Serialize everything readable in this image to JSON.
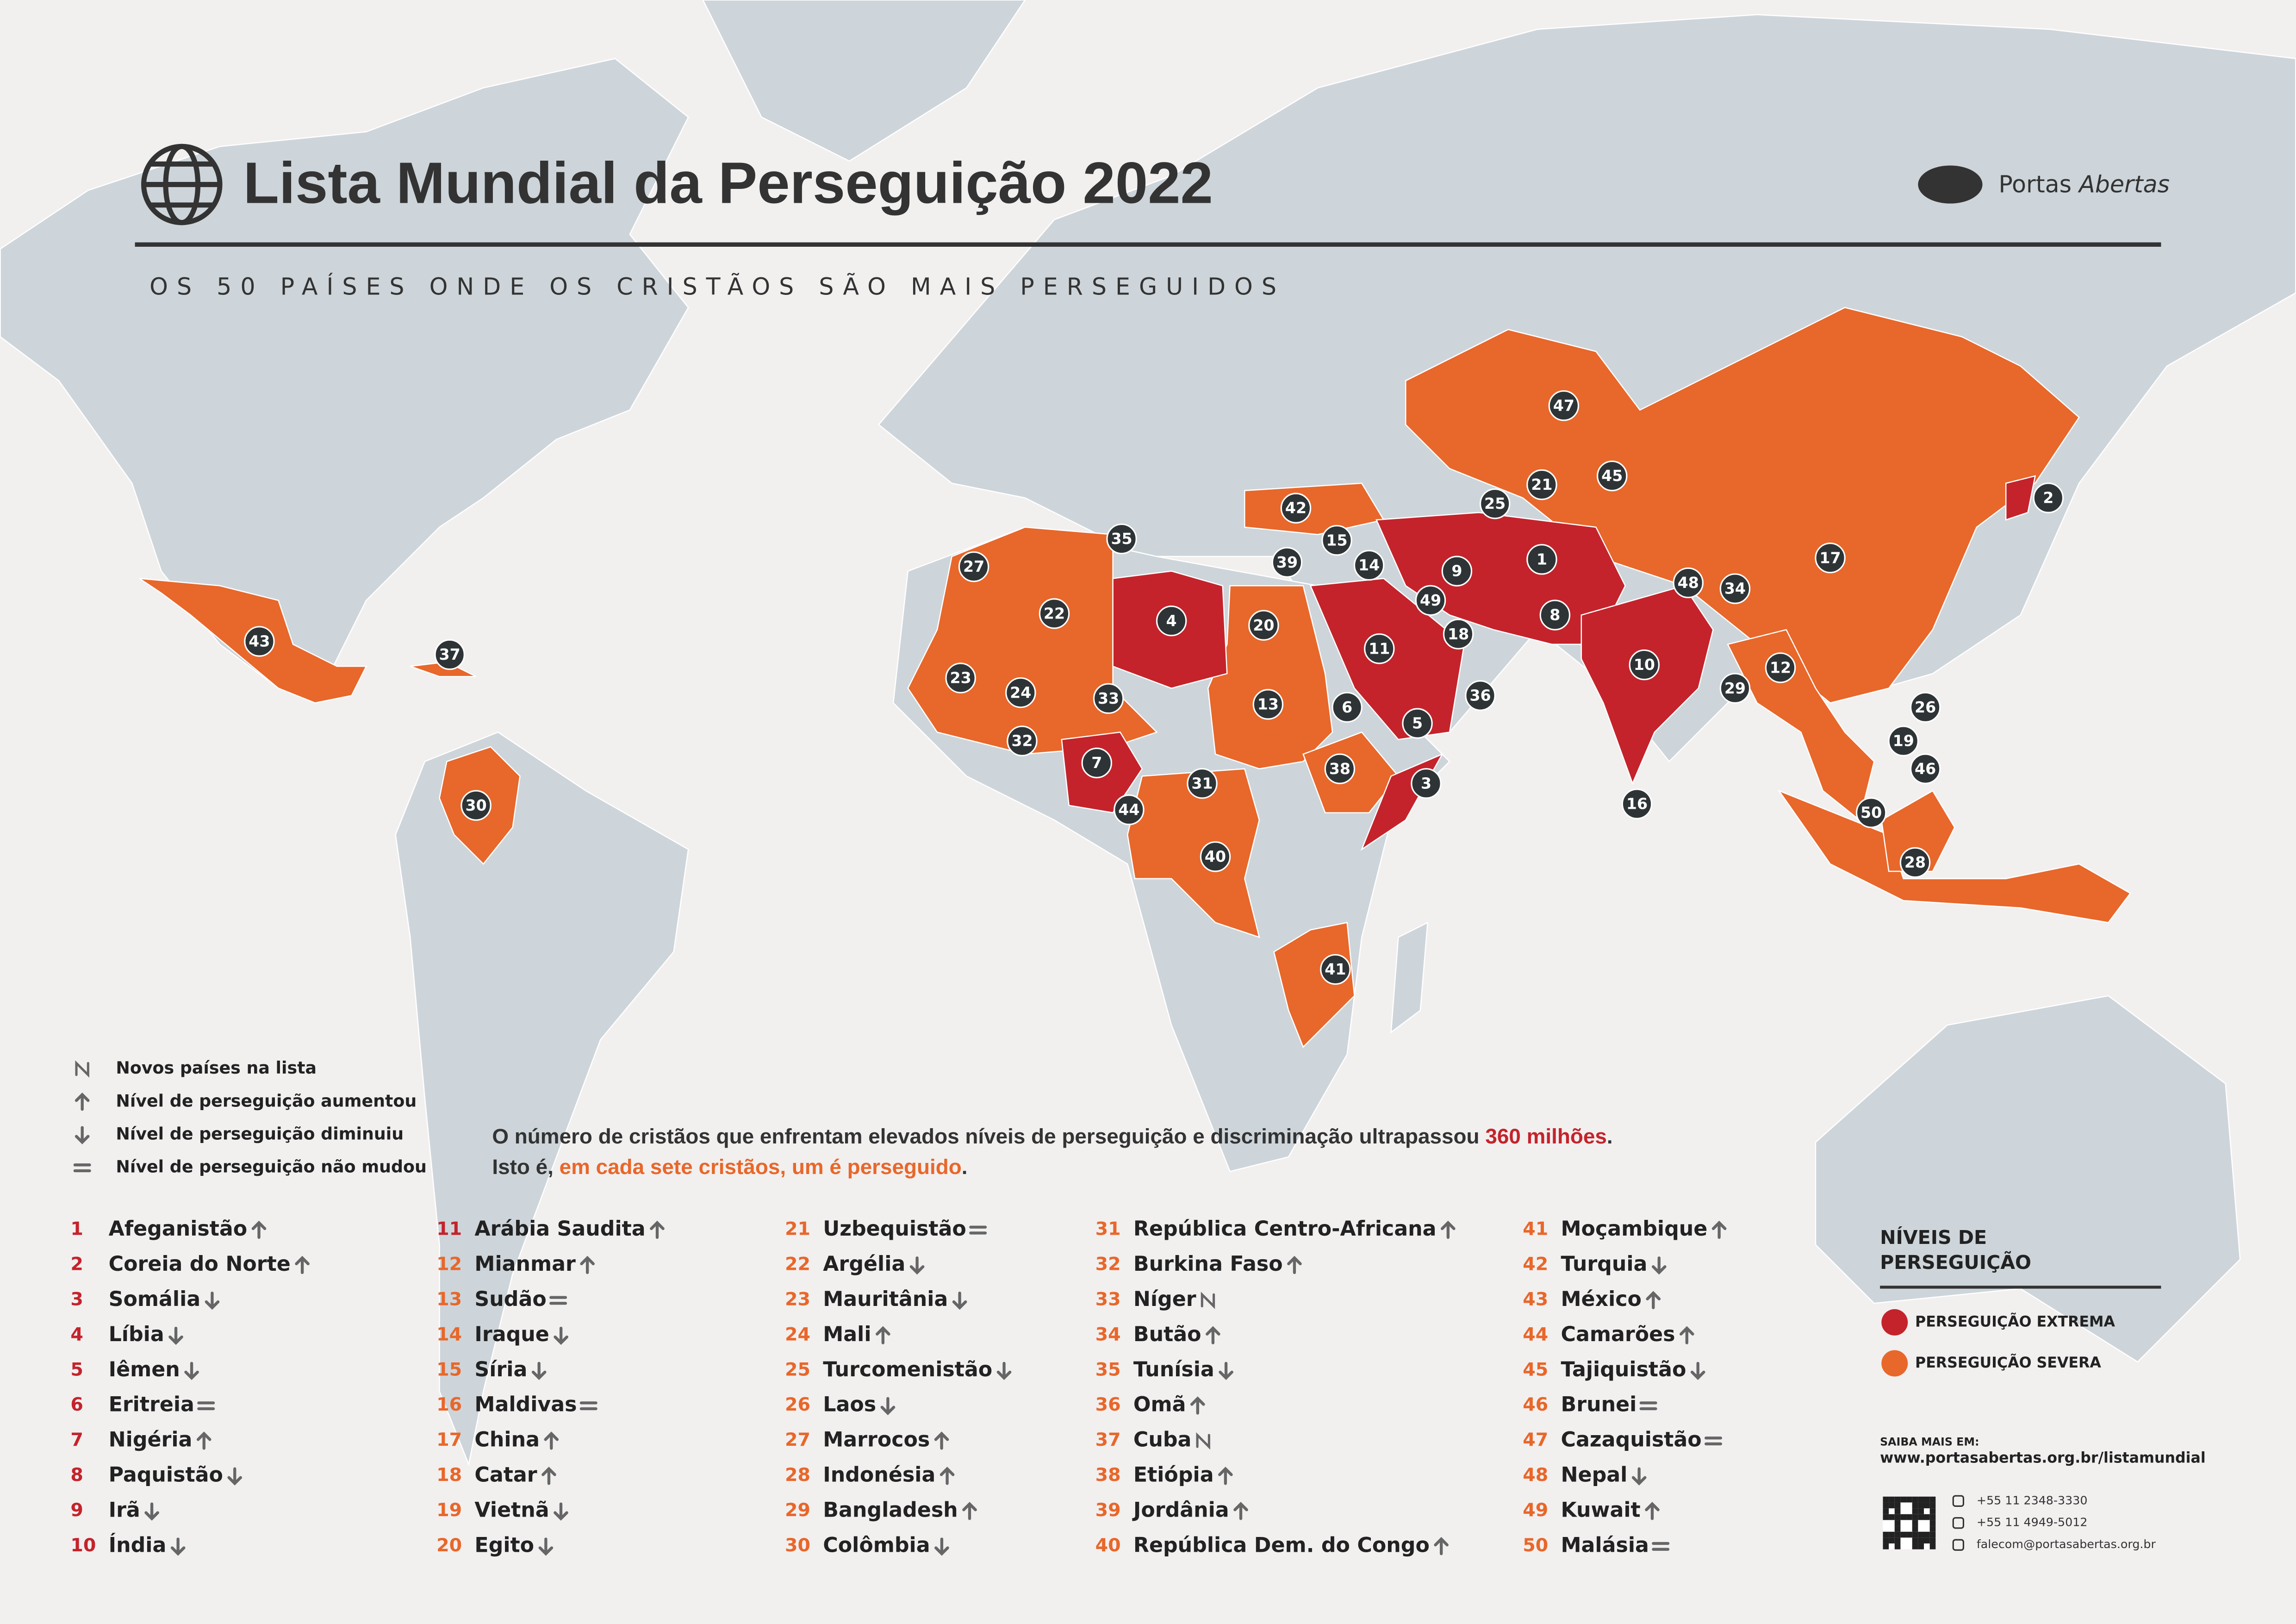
{
  "header": {
    "title": "Lista Mundial da Perseguição 2022",
    "subtitle": "OS 50 PAÍSES ONDE OS CRISTÃOS SÃO MAIS PERSEGUIDOS",
    "brand": [
      "Portas",
      "Abertas"
    ]
  },
  "trend_legend": [
    {
      "trend": "new",
      "label": "Novos países na lista"
    },
    {
      "trend": "up",
      "label": "Nível de perseguição aumentou"
    },
    {
      "trend": "down",
      "label": "Nível de perseguição diminuiu"
    },
    {
      "trend": "same",
      "label": "Nível de perseguição não mudou"
    }
  ],
  "statement": {
    "line1": [
      "O número de cristãos que enfrentam elevados níveis de perseguição e discriminação ultrapassou ",
      "360 milhões",
      "."
    ],
    "line2": [
      "Isto é, ",
      "em cada sete cristãos, um é perseguido",
      "."
    ]
  },
  "levels": {
    "title": [
      "NÍVEIS DE",
      "PERSEGUIÇÃO"
    ],
    "items": [
      {
        "key": "extreme",
        "label": "PERSEGUIÇÃO EXTREMA",
        "color": "#c4232b"
      },
      {
        "key": "severe",
        "label": "PERSEGUIÇÃO SEVERA",
        "color": "#e8672a"
      }
    ]
  },
  "contact": {
    "heading": "SAIBA MAIS EM:",
    "url": "www.portasabertas.org.br/listamundial",
    "phone1": "+55 11 2348-3330",
    "phone2": "+55 11 4949-5012",
    "email": "falecom@portasabertas.org.br"
  },
  "countries": [
    {
      "rank": 1,
      "name": "Afeganistão",
      "trend": "up",
      "level": "extreme"
    },
    {
      "rank": 2,
      "name": "Coreia do Norte",
      "trend": "up",
      "level": "extreme"
    },
    {
      "rank": 3,
      "name": "Somália",
      "trend": "down",
      "level": "extreme"
    },
    {
      "rank": 4,
      "name": "Líbia",
      "trend": "down",
      "level": "extreme"
    },
    {
      "rank": 5,
      "name": "Iêmen",
      "trend": "down",
      "level": "extreme"
    },
    {
      "rank": 6,
      "name": "Eritreia",
      "trend": "same",
      "level": "extreme"
    },
    {
      "rank": 7,
      "name": "Nigéria",
      "trend": "up",
      "level": "extreme"
    },
    {
      "rank": 8,
      "name": "Paquistão",
      "trend": "down",
      "level": "extreme"
    },
    {
      "rank": 9,
      "name": "Irã",
      "trend": "down",
      "level": "extreme"
    },
    {
      "rank": 10,
      "name": "Índia",
      "trend": "down",
      "level": "extreme"
    },
    {
      "rank": 11,
      "name": "Arábia Saudita",
      "trend": "up",
      "level": "extreme"
    },
    {
      "rank": 12,
      "name": "Mianmar",
      "trend": "up",
      "level": "severe"
    },
    {
      "rank": 13,
      "name": "Sudão",
      "trend": "same",
      "level": "severe"
    },
    {
      "rank": 14,
      "name": "Iraque",
      "trend": "down",
      "level": "severe"
    },
    {
      "rank": 15,
      "name": "Síria",
      "trend": "down",
      "level": "severe"
    },
    {
      "rank": 16,
      "name": "Maldivas",
      "trend": "same",
      "level": "severe"
    },
    {
      "rank": 17,
      "name": "China",
      "trend": "up",
      "level": "severe"
    },
    {
      "rank": 18,
      "name": "Catar",
      "trend": "up",
      "level": "severe"
    },
    {
      "rank": 19,
      "name": "Vietnã",
      "trend": "down",
      "level": "severe"
    },
    {
      "rank": 20,
      "name": "Egito",
      "trend": "down",
      "level": "severe"
    },
    {
      "rank": 21,
      "name": "Uzbequistão",
      "trend": "same",
      "level": "severe"
    },
    {
      "rank": 22,
      "name": "Argélia",
      "trend": "down",
      "level": "severe"
    },
    {
      "rank": 23,
      "name": "Mauritânia",
      "trend": "down",
      "level": "severe"
    },
    {
      "rank": 24,
      "name": "Mali",
      "trend": "up",
      "level": "severe"
    },
    {
      "rank": 25,
      "name": "Turcomenistão",
      "trend": "down",
      "level": "severe"
    },
    {
      "rank": 26,
      "name": "Laos",
      "trend": "down",
      "level": "severe"
    },
    {
      "rank": 27,
      "name": "Marrocos",
      "trend": "up",
      "level": "severe"
    },
    {
      "rank": 28,
      "name": "Indonésia",
      "trend": "up",
      "level": "severe"
    },
    {
      "rank": 29,
      "name": "Bangladesh",
      "trend": "up",
      "level": "severe"
    },
    {
      "rank": 30,
      "name": "Colômbia",
      "trend": "down",
      "level": "severe"
    },
    {
      "rank": 31,
      "name": "República Centro-Africana",
      "trend": "up",
      "level": "severe"
    },
    {
      "rank": 32,
      "name": "Burkina Faso",
      "trend": "up",
      "level": "severe"
    },
    {
      "rank": 33,
      "name": "Níger",
      "trend": "new",
      "level": "severe"
    },
    {
      "rank": 34,
      "name": "Butão",
      "trend": "up",
      "level": "severe"
    },
    {
      "rank": 35,
      "name": "Tunísia",
      "trend": "down",
      "level": "severe"
    },
    {
      "rank": 36,
      "name": "Omã",
      "trend": "up",
      "level": "severe"
    },
    {
      "rank": 37,
      "name": "Cuba",
      "trend": "new",
      "level": "severe"
    },
    {
      "rank": 38,
      "name": "Etiópia",
      "trend": "up",
      "level": "severe"
    },
    {
      "rank": 39,
      "name": "Jordânia",
      "trend": "up",
      "level": "severe"
    },
    {
      "rank": 40,
      "name": "República Dem. do Congo",
      "trend": "up",
      "level": "severe"
    },
    {
      "rank": 41,
      "name": "Moçambique",
      "trend": "up",
      "level": "severe"
    },
    {
      "rank": 42,
      "name": "Turquia",
      "trend": "down",
      "level": "severe"
    },
    {
      "rank": 43,
      "name": "México",
      "trend": "up",
      "level": "severe"
    },
    {
      "rank": 44,
      "name": "Camarões",
      "trend": "up",
      "level": "severe"
    },
    {
      "rank": 45,
      "name": "Tajiquistão",
      "trend": "down",
      "level": "severe"
    },
    {
      "rank": 46,
      "name": "Brunei",
      "trend": "same",
      "level": "severe"
    },
    {
      "rank": 47,
      "name": "Cazaquistão",
      "trend": "same",
      "level": "severe"
    },
    {
      "rank": 48,
      "name": "Nepal",
      "trend": "down",
      "level": "severe"
    },
    {
      "rank": 49,
      "name": "Kuwait",
      "trend": "up",
      "level": "severe"
    },
    {
      "rank": 50,
      "name": "Malásia",
      "trend": "same",
      "level": "severe"
    }
  ]
}
